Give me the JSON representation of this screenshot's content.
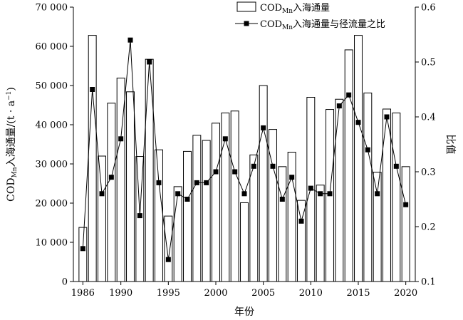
{
  "chart_data": {
    "type": "bar+line",
    "x_label": "年份",
    "y_left_label_main": "COD",
    "y_left_label_sub": "Mn",
    "y_left_label_rest": "入海通量/(t · a",
    "y_left_label_sup": "−1",
    "y_left_label_end": ")",
    "y_right_label": "比值",
    "legend": [
      {
        "prefix": "COD",
        "sub": "Mn",
        "suffix": "入海通量",
        "kind": "bar"
      },
      {
        "prefix": "COD",
        "sub": "Mn",
        "suffix": "入海通量与径流量之比",
        "kind": "line"
      }
    ],
    "years": [
      1986,
      1987,
      1988,
      1989,
      1990,
      1991,
      1992,
      1993,
      1994,
      1995,
      1996,
      1997,
      1998,
      1999,
      2000,
      2001,
      2002,
      2003,
      2004,
      2005,
      2006,
      2007,
      2008,
      2009,
      2010,
      2011,
      2012,
      2013,
      2014,
      2015,
      2016,
      2017,
      2018,
      2019,
      2020
    ],
    "flux": [
      13800,
      62800,
      32000,
      45500,
      51900,
      48400,
      31900,
      56700,
      33600,
      16700,
      24200,
      33200,
      37300,
      36000,
      40400,
      43000,
      43500,
      20100,
      32300,
      50000,
      38800,
      29300,
      33000,
      20700,
      47000,
      24600,
      43900,
      46500,
      59100,
      62800,
      48100,
      27900,
      44000,
      43000,
      29300
    ],
    "ratio": [
      0.16,
      0.45,
      0.26,
      0.29,
      0.36,
      0.54,
      0.22,
      0.5,
      0.28,
      0.14,
      0.26,
      0.25,
      0.28,
      0.28,
      0.3,
      0.36,
      0.3,
      0.26,
      0.31,
      0.38,
      0.31,
      0.25,
      0.29,
      0.21,
      0.27,
      0.26,
      0.26,
      0.42,
      0.44,
      0.39,
      0.34,
      0.26,
      0.4,
      0.31,
      0.24
    ],
    "y_left_ticks": [
      "0",
      "10 000",
      "20 000",
      "30 000",
      "40 000",
      "50 000",
      "60 000",
      "70 000"
    ],
    "y_left_tick_values": [
      0,
      10000,
      20000,
      30000,
      40000,
      50000,
      60000,
      70000
    ],
    "y_left_lim": [
      0,
      70000
    ],
    "y_right_ticks": [
      "0.1",
      "0.2",
      "0.3",
      "0.4",
      "0.5",
      "0.6"
    ],
    "y_right_tick_values": [
      0.1,
      0.2,
      0.3,
      0.4,
      0.5,
      0.6
    ],
    "y_right_lim": [
      0.1,
      0.6
    ],
    "x_ticks": [
      "1986",
      "1990",
      "1995",
      "2000",
      "2005",
      "2010",
      "2015",
      "2020"
    ],
    "x_tick_values": [
      1986,
      1990,
      1995,
      2000,
      2005,
      2010,
      2015,
      2020
    ],
    "x_lim": [
      1985,
      2021
    ],
    "grid": false,
    "legend_position": "top-right"
  }
}
